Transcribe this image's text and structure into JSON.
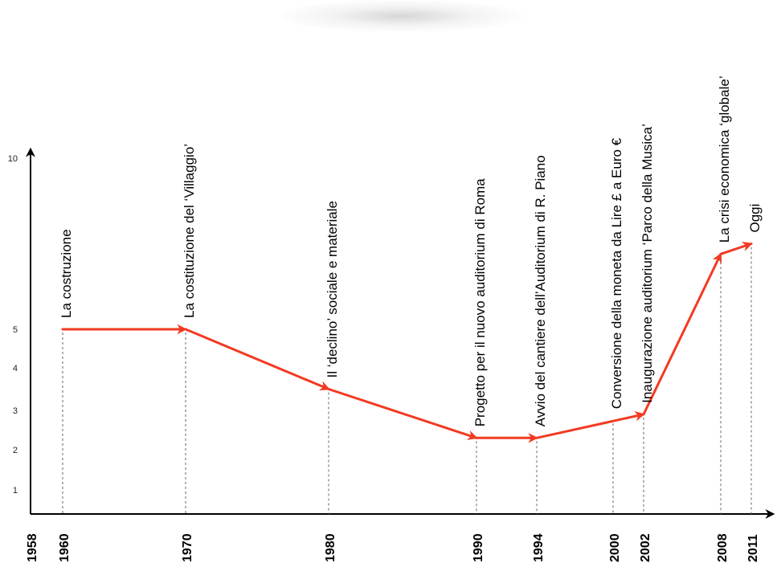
{
  "colors": {
    "line": "#f23a22",
    "axis": "#000000",
    "guide": "#666666"
  },
  "chart_data": {
    "type": "line",
    "title": "",
    "xlabel": "",
    "ylabel": "",
    "ylim": [
      0,
      10
    ],
    "xlim": [
      1958,
      2012
    ],
    "y_ticks": [
      "1",
      "2",
      "3",
      "4",
      "5",
      "10"
    ],
    "x_ticks": [
      "1958",
      "1960",
      "1970",
      "1980",
      "1990",
      "1994",
      "2000",
      "2002",
      "2008",
      "2011"
    ],
    "grid": false,
    "legend": "none",
    "series": [
      {
        "values": [
          {
            "x": 1960,
            "y": 5.0
          },
          {
            "x": 1970,
            "y": 5.0
          },
          {
            "x": 1980,
            "y": 3.5
          },
          {
            "x": 1990,
            "y": 2.3
          },
          {
            "x": 1994,
            "y": 2.3
          },
          {
            "x": 2002,
            "y": 2.9
          },
          {
            "x": 2008,
            "y": 7.2
          },
          {
            "x": 2011,
            "y": 7.5
          }
        ]
      }
    ],
    "annotations": [
      {
        "x": 1960,
        "y": 5.0,
        "text": "La costruzione"
      },
      {
        "x": 1970,
        "y": 5.0,
        "text": "La costituzione del ‘Villaggio’"
      },
      {
        "x": 1980,
        "y": 3.5,
        "text": "Il ‘declino’ sociale e materiale"
      },
      {
        "x": 1990,
        "y": 2.3,
        "text": "Progetto per il nuovo auditorium di Roma"
      },
      {
        "x": 1994,
        "y": 2.3,
        "text": "Avvio del cantiere dell’Auditorium di R. Piano"
      },
      {
        "x": 2000,
        "y": 2.75,
        "text": "Conversione della moneta da Lire £ a Euro €"
      },
      {
        "x": 2002,
        "y": 2.9,
        "text": "Inaugurazione auditorium ‘Parco della Musica’"
      },
      {
        "x": 2008,
        "y": 7.2,
        "text": "La crisi economica ‘globale’"
      },
      {
        "x": 2011,
        "y": 7.5,
        "text": "Oggi"
      }
    ]
  }
}
